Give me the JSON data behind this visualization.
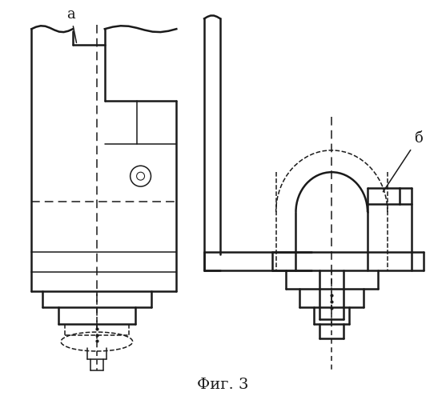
{
  "title": "Фиг. 3",
  "background_color": "#ffffff",
  "line_color": "#1a1a1a",
  "label_a": "а",
  "label_b": "б",
  "figsize": [
    5.57,
    5.0
  ],
  "dpi": 100
}
